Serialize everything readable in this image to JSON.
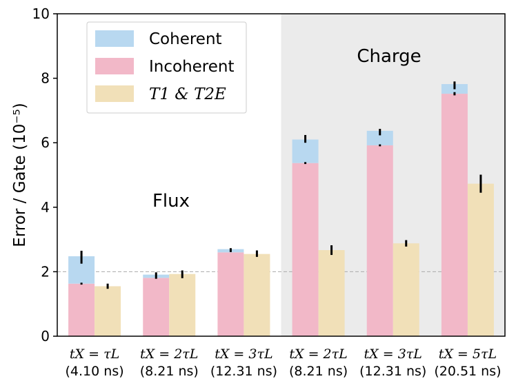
{
  "chart_data": {
    "type": "bar",
    "ylabel": "Error / Gate (10⁻⁵)",
    "ylim": [
      0,
      10
    ],
    "yticks": [
      0,
      2,
      4,
      6,
      8,
      10
    ],
    "reference_line": 2,
    "groups": [
      {
        "label": "Flux",
        "from_category": 0,
        "to_category": 2,
        "shaded": false
      },
      {
        "label": "Charge",
        "from_category": 3,
        "to_category": 5,
        "shaded": true
      }
    ],
    "categories": [
      {
        "line1": "tX = τL",
        "line2": "(4.10 ns)"
      },
      {
        "line1": "tX = 2τL",
        "line2": "(8.21 ns)"
      },
      {
        "line1": "tX = 3τL",
        "line2": "(12.31 ns)"
      },
      {
        "line1": "tX = 2τL",
        "line2": "(8.21 ns)"
      },
      {
        "line1": "tX = 3τL",
        "line2": "(12.31 ns)"
      },
      {
        "line1": "tX = 5τL",
        "line2": "(20.51 ns)"
      }
    ],
    "series": [
      {
        "name": "Coherent",
        "color": "#b8d8f0",
        "stack": "measured",
        "values": [
          0.85,
          0.1,
          0.1,
          0.73,
          0.45,
          0.3
        ]
      },
      {
        "name": "Incoherent",
        "color": "#f2b8c8",
        "stack": "measured",
        "values": [
          1.63,
          1.81,
          2.6,
          5.37,
          5.92,
          7.52
        ]
      },
      {
        "name": "T1 & T2E",
        "color": "#f1e0b8",
        "stack": "limit",
        "values": [
          1.55,
          1.93,
          2.55,
          2.67,
          2.88,
          4.73
        ]
      }
    ],
    "error_bars": [
      {
        "category": 0,
        "stack": "measured",
        "center": 2.45,
        "half": 0.2
      },
      {
        "category": 0,
        "stack": "measured",
        "center": 1.63,
        "half": 0.03
      },
      {
        "category": 0,
        "stack": "limit",
        "center": 1.55,
        "half": 0.08
      },
      {
        "category": 1,
        "stack": "measured",
        "center": 1.88,
        "half": 0.1
      },
      {
        "category": 1,
        "stack": "limit",
        "center": 1.92,
        "half": 0.12
      },
      {
        "category": 2,
        "stack": "measured",
        "center": 2.67,
        "half": 0.06
      },
      {
        "category": 2,
        "stack": "limit",
        "center": 2.56,
        "half": 0.1
      },
      {
        "category": 3,
        "stack": "measured",
        "center": 6.12,
        "half": 0.12
      },
      {
        "category": 3,
        "stack": "measured",
        "center": 5.37,
        "half": 0.03
      },
      {
        "category": 3,
        "stack": "limit",
        "center": 2.67,
        "half": 0.15
      },
      {
        "category": 4,
        "stack": "measured",
        "center": 6.33,
        "half": 0.1
      },
      {
        "category": 4,
        "stack": "measured",
        "center": 5.92,
        "half": 0.03
      },
      {
        "category": 4,
        "stack": "limit",
        "center": 2.88,
        "half": 0.1
      },
      {
        "category": 5,
        "stack": "measured",
        "center": 7.78,
        "half": 0.12
      },
      {
        "category": 5,
        "stack": "measured",
        "center": 7.52,
        "half": 0.05
      },
      {
        "category": 5,
        "stack": "limit",
        "center": 4.73,
        "half": 0.28
      }
    ],
    "legend": {
      "placement": "top-left",
      "entries": [
        {
          "label": "Coherent",
          "color": "#b8d8f0"
        },
        {
          "label": "Incoherent",
          "color": "#f2b8c8"
        },
        {
          "label": "T1 & T2E",
          "color": "#f1e0b8"
        }
      ]
    }
  }
}
